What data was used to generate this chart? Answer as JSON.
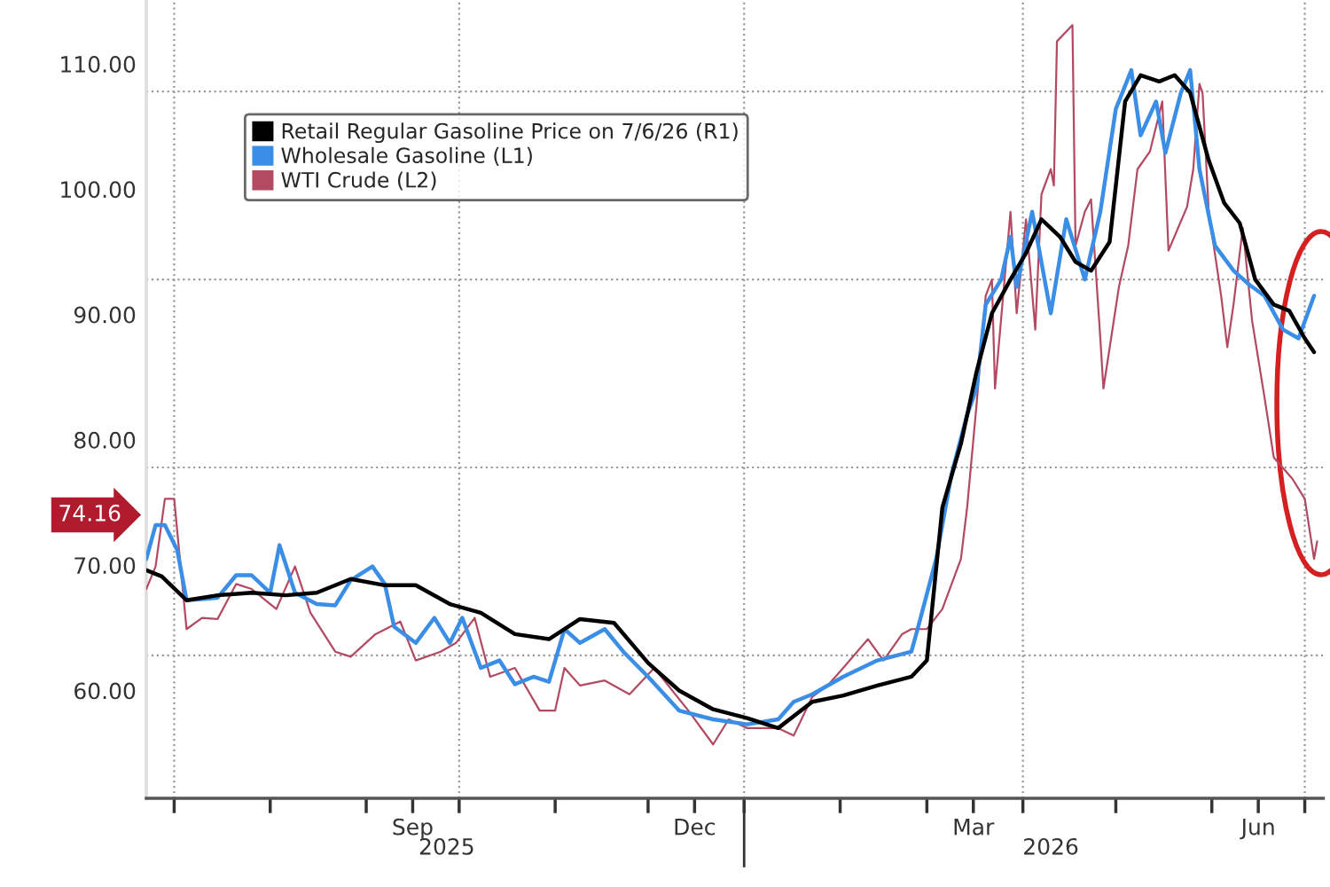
{
  "chart_data": {
    "type": "line",
    "xlim": [
      "2025-06-22",
      "2026-07-07"
    ],
    "xticks": [
      {
        "value": "2025-07-01",
        "label": null
      },
      {
        "value": "2025-08-01",
        "label": null
      },
      {
        "value": "2025-09-01",
        "label": null
      },
      {
        "value": "2025-09-16",
        "label": "Sep"
      },
      {
        "value": "2025-10-01",
        "label": null
      },
      {
        "value": "2025-11-01",
        "label": null
      },
      {
        "value": "2025-12-01",
        "label": null
      },
      {
        "value": "2025-12-16",
        "label": "Dec"
      },
      {
        "value": "2026-01-01",
        "label": null
      },
      {
        "value": "2026-02-01",
        "label": null
      },
      {
        "value": "2026-03-01",
        "label": null
      },
      {
        "value": "2026-03-16",
        "label": "Mar"
      },
      {
        "value": "2026-04-01",
        "label": null
      },
      {
        "value": "2026-05-01",
        "label": null
      },
      {
        "value": "2026-06-01",
        "label": null
      },
      {
        "value": "2026-06-16",
        "label": "Jun"
      },
      {
        "value": "2026-07-01",
        "label": null
      }
    ],
    "x2lim": [
      "2025-06-22",
      "2026-07-07"
    ],
    "x2ticks": [
      {
        "value": "2025-09-27",
        "label": "2025"
      },
      {
        "value": "2026-01-01",
        "label": null
      },
      {
        "value": "2026-04-10",
        "label": "2026"
      }
    ],
    "ylim": [
      51.4,
      115.1
    ],
    "yticks": [
      {
        "value": 60,
        "label": "60.00"
      },
      {
        "value": 70,
        "label": "70.00"
      },
      {
        "value": 80,
        "label": "80.00"
      },
      {
        "value": 90,
        "label": "90.00"
      },
      {
        "value": 100,
        "label": "100.00"
      },
      {
        "value": 110,
        "label": "110.00"
      }
    ],
    "grid": false,
    "legend": "top left",
    "marker": "none",
    "line_style": "solid",
    "ref_lines": [
      {
        "axis": "x",
        "value": "2025-07-01",
        "label": null,
        "color": "#9a9a9a",
        "line_style": "dotted"
      },
      {
        "axis": "x",
        "value": "2025-10-01",
        "label": null,
        "color": "#9a9a9a",
        "line_style": "dotted"
      },
      {
        "axis": "x",
        "value": "2026-01-01",
        "label": null,
        "color": "#9a9a9a",
        "line_style": "dotted"
      },
      {
        "axis": "x",
        "value": "2026-04-01",
        "label": null,
        "color": "#9a9a9a",
        "line_style": "dotted"
      },
      {
        "axis": "x",
        "value": "2026-07-01",
        "label": null,
        "color": "#9a9a9a",
        "line_style": "dotted"
      },
      {
        "axis": "y",
        "value": 107.8,
        "label": null,
        "color": "#9a9a9a",
        "line_style": "dotted"
      },
      {
        "axis": "y",
        "value": 92.8,
        "label": null,
        "color": "#9a9a9a",
        "line_style": "dotted"
      },
      {
        "axis": "y",
        "value": 77.8,
        "label": null,
        "color": "#9a9a9a",
        "line_style": "dotted"
      },
      {
        "axis": "y",
        "value": 62.8,
        "label": null,
        "color": "#9a9a9a",
        "line_style": "dotted"
      }
    ],
    "annotations": [
      "74.16"
    ],
    "series": [
      {
        "name": "Retail Regular Gasoline Price on 7/6/26 (R1)",
        "color": "#000000",
        "x": [
          "2025-06-22",
          "2025-06-27",
          "2025-07-05",
          "2025-07-15",
          "2025-07-26",
          "2025-08-06",
          "2025-08-16",
          "2025-08-27",
          "2025-09-07",
          "2025-09-17",
          "2025-09-28",
          "2025-10-08",
          "2025-10-19",
          "2025-10-30",
          "2025-11-09",
          "2025-11-20",
          "2025-12-01",
          "2025-12-11",
          "2025-12-22",
          "2026-01-02",
          "2026-01-12",
          "2026-01-23",
          "2026-02-02",
          "2026-02-13",
          "2026-02-24",
          "2026-03-01",
          "2026-03-06",
          "2026-03-12",
          "2026-03-17",
          "2026-03-22",
          "2026-03-28",
          "2026-04-02",
          "2026-04-07",
          "2026-04-13",
          "2026-04-18",
          "2026-04-23",
          "2026-04-29",
          "2026-05-04",
          "2026-05-09",
          "2026-05-15",
          "2026-05-20",
          "2026-05-25",
          "2026-05-31",
          "2026-06-05",
          "2026-06-10",
          "2026-06-15",
          "2026-06-21",
          "2026-06-26",
          "2026-07-01",
          "2026-07-04"
        ],
        "values": [
          69.6,
          69.1,
          67.2,
          67.6,
          67.8,
          67.6,
          67.8,
          68.9,
          68.4,
          68.4,
          66.9,
          66.2,
          64.5,
          64.1,
          65.7,
          65.4,
          62.2,
          60.0,
          58.5,
          57.8,
          57.0,
          59.1,
          59.6,
          60.4,
          61.1,
          62.4,
          74.6,
          79.7,
          85.4,
          90.1,
          92.8,
          94.9,
          97.6,
          96.2,
          94.2,
          93.5,
          95.8,
          107.0,
          109.1,
          108.6,
          109.1,
          107.7,
          102.3,
          98.9,
          97.3,
          92.8,
          90.8,
          90.3,
          88.1,
          87.0
        ]
      },
      {
        "name": "Wholesale Gasoline (L1)",
        "color": "#3a8ee6",
        "x": [
          "2025-06-22",
          "2025-06-25",
          "2025-06-28",
          "2025-07-02",
          "2025-07-05",
          "2025-07-15",
          "2025-07-21",
          "2025-07-26",
          "2025-08-01",
          "2025-08-04",
          "2025-08-09",
          "2025-08-16",
          "2025-08-22",
          "2025-08-27",
          "2025-09-03",
          "2025-09-07",
          "2025-09-10",
          "2025-09-17",
          "2025-09-23",
          "2025-09-28",
          "2025-10-02",
          "2025-10-08",
          "2025-10-14",
          "2025-10-19",
          "2025-10-25",
          "2025-10-30",
          "2025-11-04",
          "2025-11-09",
          "2025-11-17",
          "2025-11-23",
          "2025-12-01",
          "2025-12-11",
          "2025-12-22",
          "2026-01-02",
          "2026-01-12",
          "2026-01-17",
          "2026-01-23",
          "2026-02-02",
          "2026-02-13",
          "2026-02-24",
          "2026-02-26",
          "2026-03-04",
          "2026-03-09",
          "2026-03-14",
          "2026-03-17",
          "2026-03-20",
          "2026-03-25",
          "2026-03-28",
          "2026-03-30",
          "2026-04-04",
          "2026-04-10",
          "2026-04-15",
          "2026-04-21",
          "2026-04-26",
          "2026-05-01",
          "2026-05-06",
          "2026-05-09",
          "2026-05-14",
          "2026-05-17",
          "2026-05-22",
          "2026-05-25",
          "2026-05-28",
          "2026-06-02",
          "2026-06-08",
          "2026-06-13",
          "2026-06-18",
          "2026-06-24",
          "2026-06-29",
          "2026-07-04"
        ],
        "values": [
          70.5,
          73.2,
          73.2,
          71.2,
          67.2,
          67.4,
          69.2,
          69.2,
          67.8,
          71.6,
          67.8,
          66.9,
          66.8,
          68.8,
          69.9,
          68.5,
          65.1,
          63.8,
          65.8,
          63.8,
          65.8,
          61.8,
          62.4,
          60.5,
          61.1,
          60.7,
          64.9,
          63.8,
          64.9,
          63.1,
          61.1,
          58.4,
          57.7,
          57.3,
          57.7,
          59.1,
          59.7,
          61.1,
          62.4,
          63.1,
          64.9,
          70.5,
          77.3,
          82.0,
          84.1,
          90.8,
          92.8,
          96.2,
          92.2,
          98.2,
          90.1,
          97.6,
          92.8,
          98.2,
          106.4,
          109.5,
          104.3,
          107.0,
          102.9,
          107.7,
          109.5,
          101.6,
          95.5,
          93.5,
          92.4,
          91.5,
          88.8,
          88.1,
          91.5
        ]
      },
      {
        "name": "WTI Crude (L2)",
        "color": "#b24a62",
        "x": [
          "2025-06-22",
          "2025-06-25",
          "2025-06-28",
          "2025-07-01",
          "2025-07-05",
          "2025-07-10",
          "2025-07-15",
          "2025-07-21",
          "2025-07-26",
          "2025-08-03",
          "2025-08-09",
          "2025-08-14",
          "2025-08-22",
          "2025-08-27",
          "2025-09-04",
          "2025-09-12",
          "2025-09-17",
          "2025-09-25",
          "2025-09-30",
          "2025-10-06",
          "2025-10-11",
          "2025-10-19",
          "2025-10-27",
          "2025-11-01",
          "2025-11-04",
          "2025-11-09",
          "2025-11-17",
          "2025-11-25",
          "2025-12-03",
          "2025-12-14",
          "2025-12-22",
          "2025-12-27",
          "2026-01-02",
          "2026-01-12",
          "2026-01-17",
          "2026-01-23",
          "2026-01-28",
          "2026-02-02",
          "2026-02-10",
          "2026-02-15",
          "2026-02-21",
          "2026-02-24",
          "2026-03-01",
          "2026-03-06",
          "2026-03-12",
          "2026-03-14",
          "2026-03-17",
          "2026-03-20",
          "2026-03-22",
          "2026-03-23",
          "2026-03-28",
          "2026-03-30",
          "2026-04-02",
          "2026-04-05",
          "2026-04-07",
          "2026-04-10",
          "2026-04-11",
          "2026-04-12",
          "2026-04-17",
          "2026-04-18",
          "2026-04-21",
          "2026-04-23",
          "2026-04-26",
          "2026-04-27",
          "2026-05-02",
          "2026-05-05",
          "2026-05-08",
          "2026-05-12",
          "2026-05-16",
          "2026-05-18",
          "2026-05-24",
          "2026-05-26",
          "2026-05-28",
          "2026-05-29",
          "2026-05-31",
          "2026-06-04",
          "2026-06-06",
          "2026-06-08",
          "2026-06-11",
          "2026-06-14",
          "2026-06-18",
          "2026-06-21",
          "2026-06-27",
          "2026-07-01",
          "2026-07-04",
          "2026-07-05"
        ],
        "values": [
          68.1,
          69.9,
          75.3,
          75.3,
          64.9,
          65.8,
          65.7,
          68.5,
          68.1,
          66.5,
          69.9,
          66.2,
          63.1,
          62.7,
          64.5,
          65.5,
          62.4,
          63.1,
          63.8,
          65.8,
          61.1,
          61.8,
          58.4,
          58.4,
          61.8,
          60.4,
          60.8,
          59.7,
          61.8,
          58.4,
          55.7,
          57.7,
          57.0,
          57.0,
          56.4,
          59.5,
          60.4,
          61.8,
          64.1,
          62.4,
          64.5,
          64.9,
          64.9,
          66.5,
          70.5,
          74.6,
          82.7,
          91.5,
          92.8,
          84.1,
          98.2,
          90.1,
          97.6,
          88.8,
          99.6,
          101.6,
          100.3,
          111.8,
          113.1,
          95.5,
          98.2,
          99.2,
          88.1,
          84.1,
          92.2,
          95.5,
          101.6,
          103.0,
          107.0,
          95.1,
          98.6,
          101.6,
          108.4,
          107.7,
          98.2,
          91.5,
          87.4,
          90.8,
          96.9,
          89.5,
          83.4,
          78.6,
          76.9,
          75.3,
          70.5,
          71.9
        ]
      }
    ]
  }
}
